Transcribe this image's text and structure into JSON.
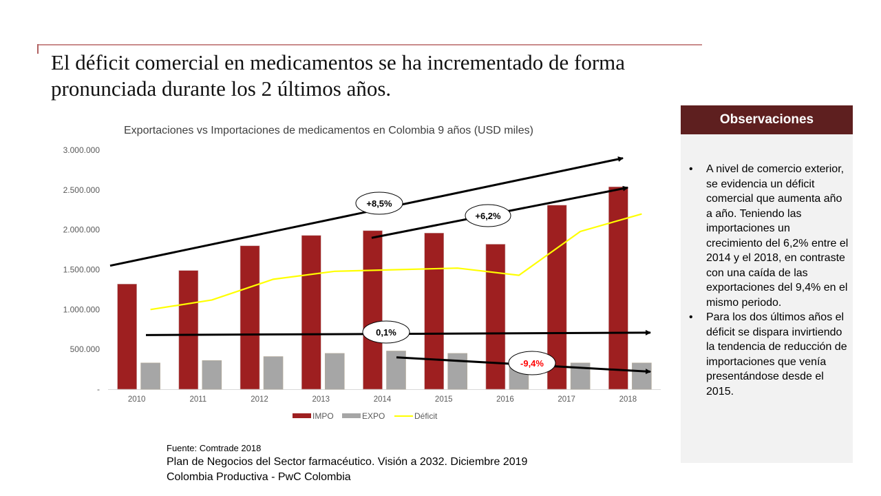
{
  "slide": {
    "title": "El déficit comercial en medicamentos se ha incrementado de forma pronunciada durante los 2 últimos años."
  },
  "observations": {
    "header": "Observaciones",
    "bullets": [
      "A nivel de comercio exterior, se evidencia un déficit comercial que aumenta año a año. Teniendo las importaciones un crecimiento del 6,2% entre el 2014 y el 2018, en contraste con una caída de las exportaciones del 9,4% en el mismo periodo.",
      "Para los dos últimos años el déficit se dispara invirtiendo la tendencia de reducción de importaciones que venía presentándose desde el 2015."
    ],
    "bullet_glyph": "•"
  },
  "sources": {
    "line1": "Fuente: Comtrade 2018",
    "line2": "Plan de Negocios del Sector farmacéutico. Visión a 2032. Diciembre 2019",
    "line3": "Colombia Productiva - PwC Colombia"
  },
  "colors": {
    "impo": "#9e1f20",
    "expo": "#a6a6a6",
    "deficit": "#ffff00",
    "negative_annotation": "#ff0000",
    "header_bg": "#5e1f1f"
  },
  "chart_data": {
    "type": "bar",
    "title": "Exportaciones vs Importaciones de medicamentos en Colombia 9 años (USD miles)",
    "xlabel": "",
    "ylabel": "",
    "categories": [
      "2010",
      "2011",
      "2012",
      "2013",
      "2014",
      "2015",
      "2016",
      "2017",
      "2018"
    ],
    "series": [
      {
        "name": "IMPO",
        "type": "bar",
        "values": [
          1320000,
          1490000,
          1800000,
          1930000,
          1990000,
          1960000,
          1820000,
          2310000,
          2540000
        ]
      },
      {
        "name": "EXPO",
        "type": "bar",
        "values": [
          330000,
          360000,
          410000,
          450000,
          480000,
          450000,
          380000,
          330000,
          330000
        ]
      },
      {
        "name": "Déficit",
        "type": "line",
        "values": [
          1000000,
          1120000,
          1380000,
          1480000,
          1500000,
          1520000,
          1430000,
          1980000,
          2200000
        ]
      }
    ],
    "ylim": [
      0,
      3000000
    ],
    "yticks": [
      0,
      500000,
      1000000,
      1500000,
      2000000,
      2500000,
      3000000
    ],
    "ytick_labels": [
      "-",
      "500.000",
      "1.000.000",
      "1.500.000",
      "2.000.000",
      "2.500.000",
      "3.000.000"
    ],
    "grid": false,
    "legend": {
      "position": "bottom",
      "entries": [
        "IMPO",
        "EXPO",
        "Déficit"
      ]
    },
    "annotations": [
      {
        "label": "+8,5%",
        "from": {
          "x": "2010",
          "y": 1550000
        },
        "to": {
          "x": "2018",
          "y": 2900000
        },
        "color": "#000000"
      },
      {
        "label": "+6,2%",
        "from": {
          "x": "2014",
          "y": 1900000
        },
        "to": {
          "x": "2018",
          "y": 2530000
        },
        "color": "#000000"
      },
      {
        "label": "0,1%",
        "from": {
          "x": "2010",
          "y": 680000
        },
        "to": {
          "x": "2018",
          "y": 710000
        },
        "color": "#000000"
      },
      {
        "label": "-9,4%",
        "from": {
          "x": "2014",
          "y": 400000
        },
        "to": {
          "x": "2018",
          "y": 220000
        },
        "color": "#ff0000"
      }
    ]
  }
}
